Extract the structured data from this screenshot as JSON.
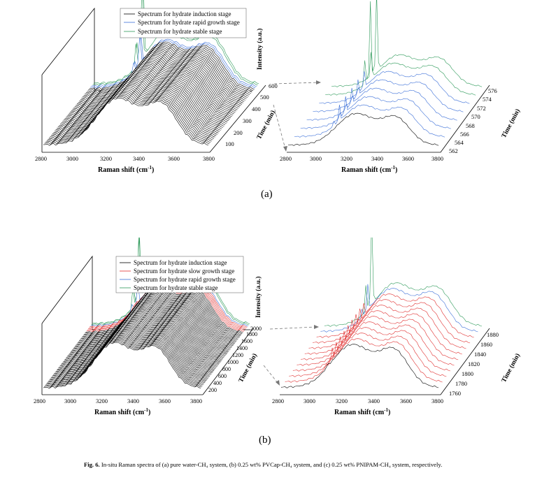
{
  "panel_a": {
    "label": "(a)",
    "left_plot": {
      "legend": [
        "Spectrum for hydrate induction stage",
        "Spectrum for hydrate rapid growth stage",
        "Spectrum for hydrate stable stage"
      ],
      "x_ticks": [
        "2800",
        "3000",
        "3200",
        "3400",
        "3600",
        "3800"
      ],
      "time_ticks": [
        "100",
        "200",
        "300",
        "400",
        "500",
        "600"
      ],
      "xlabel": "Raman shift (cm",
      "xlabel_sup": "-1",
      "ylabel": "Intensity (a.u.)",
      "zlabel": "Time (min)"
    },
    "right_plot": {
      "x_ticks": [
        "2800",
        "3000",
        "3200",
        "3400",
        "3600",
        "3800"
      ],
      "time_ticks": [
        "562",
        "564",
        "566",
        "568",
        "570",
        "572",
        "574",
        "576"
      ],
      "xlabel": "Raman shift (cm",
      "xlabel_sup": "-1",
      "zlabel": "Time (min)"
    }
  },
  "panel_b": {
    "label": "(b)",
    "left_plot": {
      "legend": [
        "Spectrum for hydrate induction stage",
        "Spectrum for hydrate slow growth stage",
        "Spectrum for hydrate rapid growth stage",
        "Spectrum for hydrate stable stage"
      ],
      "x_ticks": [
        "2800",
        "3000",
        "3200",
        "3400",
        "3600",
        "3800"
      ],
      "time_ticks": [
        "200",
        "400",
        "600",
        "800",
        "1000",
        "1200",
        "1400",
        "1600",
        "1800",
        "2000"
      ],
      "xlabel": "Raman shift (cm",
      "xlabel_sup": "-1",
      "ylabel": "Intensity (a.u.)",
      "zlabel": "Time (min)"
    },
    "right_plot": {
      "x_ticks": [
        "2800",
        "3000",
        "3200",
        "3400",
        "3600",
        "3800"
      ],
      "time_ticks": [
        "1760",
        "1780",
        "1800",
        "1820",
        "1840",
        "1860",
        "1880"
      ],
      "xlabel": "Raman shift (cm",
      "xlabel_sup": "-1",
      "zlabel": "Time (min)"
    }
  },
  "caption": {
    "fig": "Fig. 6.",
    "text": "In-situ Raman spectra of (a) pure water-CH₄ system, (b) 0.25 wt% PVCap-CH₄ system, and (c) 0.25 wt% PNIPAM-CH₄ system, respectively."
  },
  "chart_data": [
    {
      "type": "line",
      "title": "(a) left",
      "series_colors": {
        "induction": "#000000",
        "rapid_growth": "#3b6fd8",
        "stable": "#2e9a5a"
      },
      "xlim": [
        2800,
        3800
      ],
      "time_range": [
        0,
        600
      ]
    },
    {
      "type": "line",
      "title": "(a) right",
      "xlim": [
        2800,
        3800
      ],
      "time_range": [
        562,
        576
      ]
    },
    {
      "type": "line",
      "title": "(b) left",
      "series_colors": {
        "induction": "#000000",
        "slow_growth": "#e03030",
        "rapid_growth": "#3b6fd8",
        "stable": "#2e9a5a"
      },
      "xlim": [
        2800,
        3800
      ],
      "time_range": [
        0,
        2000
      ]
    },
    {
      "type": "line",
      "title": "(b) right",
      "xlim": [
        2800,
        3800
      ],
      "time_range": [
        1760,
        1880
      ]
    }
  ]
}
